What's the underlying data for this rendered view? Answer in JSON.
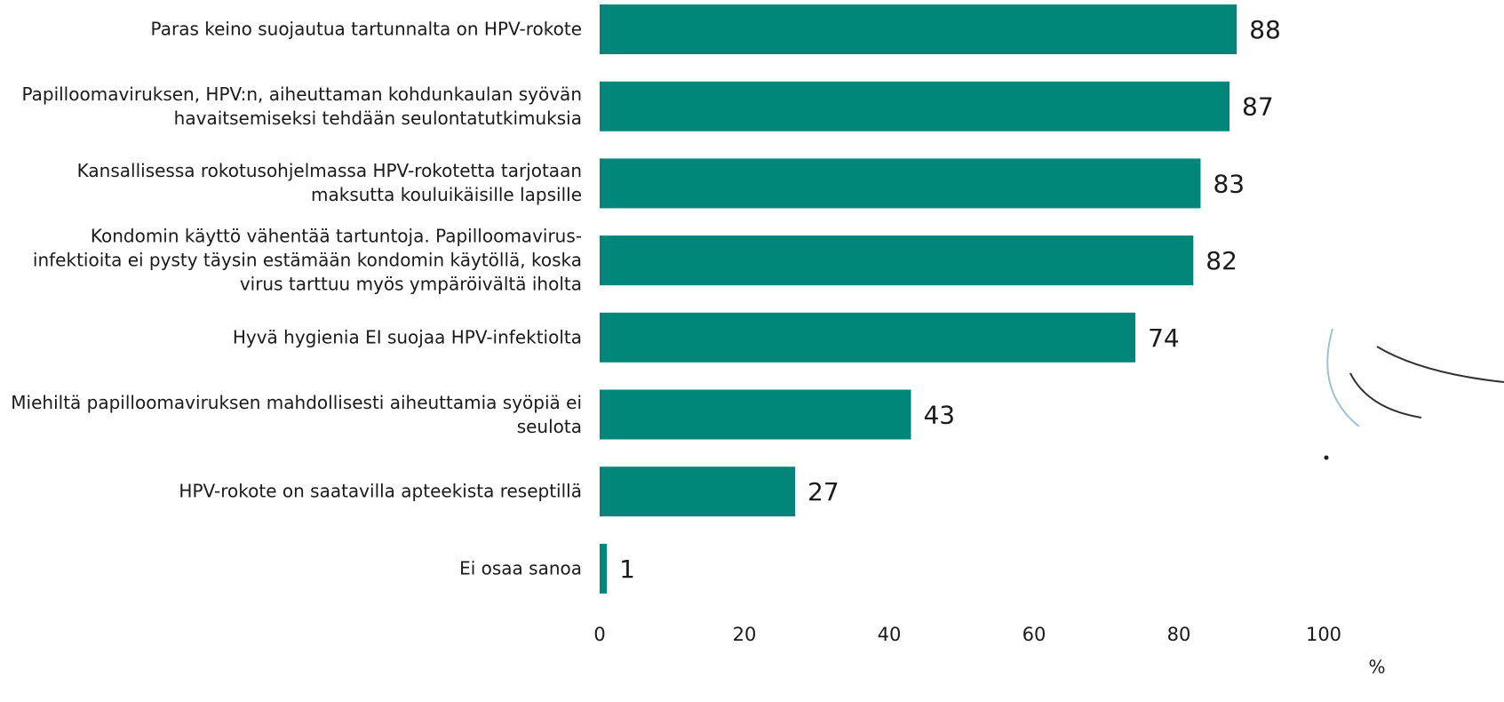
{
  "chart_data": {
    "type": "bar",
    "orientation": "horizontal",
    "categories": [
      "Paras keino suojautua tartunnalta on HPV-rokote",
      "Papilloomaviruksen, HPV:n, aiheuttaman kohdunkaulan syövän havaitsemiseksi tehdään seulontatutkimuksia",
      "Kansallisessa rokotusohjelmassa HPV-rokotetta tarjotaan maksutta kouluikäisille lapsille",
      "Kondomin käyttö vähentää tartuntoja. Papilloomavirus-infektioita ei pysty täysin estämään kondomin käytöllä, koska virus tarttuu myös ympäröivältä iholta",
      "Hyvä hygienia EI suojaa HPV-infektiolta",
      "Miehiltä papilloomaviruksen mahdollisesti aiheuttamia syöpiä ei seulota",
      "HPV-rokote on saatavilla apteekista reseptillä",
      "Ei osaa sanoa"
    ],
    "values": [
      88,
      87,
      83,
      82,
      74,
      43,
      27,
      1
    ],
    "color": "#00877a",
    "xlim": [
      0,
      100
    ],
    "xticks": [
      0,
      20,
      40,
      60,
      80,
      100
    ],
    "xlabel": "%",
    "grid": false
  }
}
